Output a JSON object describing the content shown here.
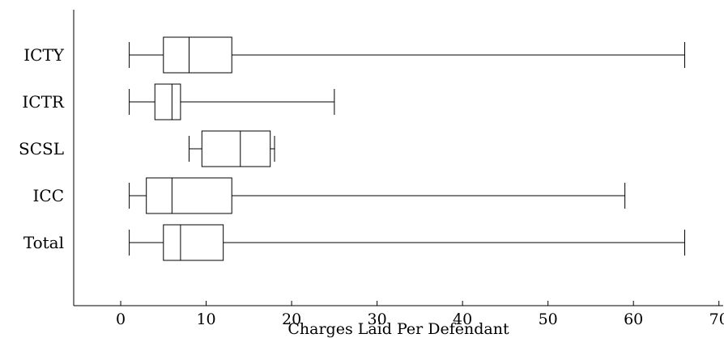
{
  "chart_data": {
    "type": "boxplot",
    "orientation": "horizontal",
    "title": "",
    "xlabel": "Charges Laid Per Defendant",
    "ylabel": "",
    "xlim": [
      -5.5,
      70.5
    ],
    "xticks": [
      0,
      10,
      20,
      30,
      40,
      50,
      60,
      70
    ],
    "grid": false,
    "categories": [
      "ICTY",
      "ICTR",
      "SCSL",
      "ICC",
      "Total"
    ],
    "boxes": [
      {
        "label": "ICTY",
        "whisker_low": 1,
        "q1": 5,
        "median": 8,
        "q3": 13,
        "whisker_high": 66
      },
      {
        "label": "ICTR",
        "whisker_low": 1,
        "q1": 4,
        "median": 6,
        "q3": 7,
        "whisker_high": 25
      },
      {
        "label": "SCSL",
        "whisker_low": 8,
        "q1": 9.5,
        "median": 14,
        "q3": 17.5,
        "whisker_high": 18
      },
      {
        "label": "ICC",
        "whisker_low": 1,
        "q1": 3,
        "median": 6,
        "q3": 13,
        "whisker_high": 59
      },
      {
        "label": "Total",
        "whisker_low": 1,
        "q1": 5,
        "median": 7,
        "q3": 12,
        "whisker_high": 66
      }
    ]
  }
}
